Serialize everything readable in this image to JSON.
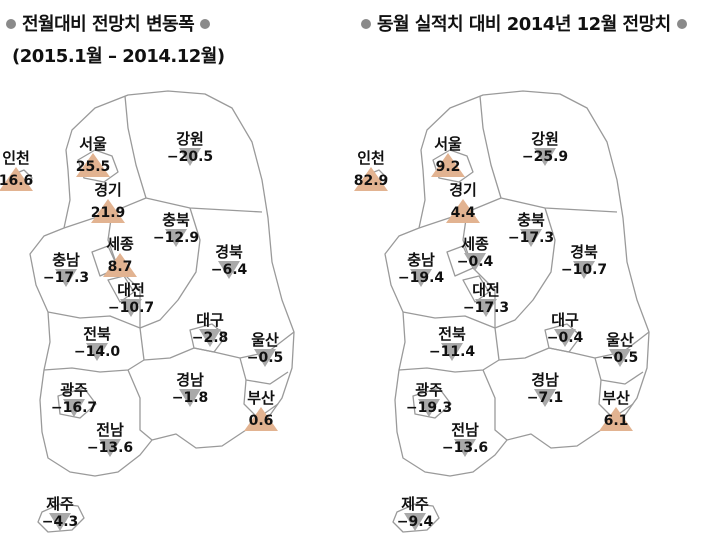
{
  "panels": [
    {
      "title": "전월대비 전망치 변동폭",
      "subtitle": "(2015.1월 – 2014.12월)",
      "regions": [
        {
          "name": "인천",
          "value": "16.6",
          "direction": "up"
        },
        {
          "name": "서울",
          "value": "25.5",
          "direction": "up"
        },
        {
          "name": "강원",
          "value": "−20.5",
          "direction": "down"
        },
        {
          "name": "경기",
          "value": "21.9",
          "direction": "up"
        },
        {
          "name": "충북",
          "value": "−12.9",
          "direction": "down"
        },
        {
          "name": "세종",
          "value": "8.7",
          "direction": "up"
        },
        {
          "name": "충남",
          "value": "−17.3",
          "direction": "down"
        },
        {
          "name": "경북",
          "value": "−6.4",
          "direction": "down"
        },
        {
          "name": "대전",
          "value": "−10.7",
          "direction": "down"
        },
        {
          "name": "대구",
          "value": "−2.8",
          "direction": "down"
        },
        {
          "name": "전북",
          "value": "−14.0",
          "direction": "down"
        },
        {
          "name": "울산",
          "value": "−0.5",
          "direction": "down"
        },
        {
          "name": "경남",
          "value": "−1.8",
          "direction": "down"
        },
        {
          "name": "광주",
          "value": "−16.7",
          "direction": "down"
        },
        {
          "name": "부산",
          "value": "0.6",
          "direction": "up"
        },
        {
          "name": "전남",
          "value": "−13.6",
          "direction": "down"
        },
        {
          "name": "제주",
          "value": "−4.3",
          "direction": "down"
        }
      ]
    },
    {
      "title": "동월 실적치 대비 2014년 12월 전망치",
      "subtitle": "",
      "regions": [
        {
          "name": "인천",
          "value": "82.9",
          "direction": "up"
        },
        {
          "name": "서울",
          "value": "9.2",
          "direction": "up"
        },
        {
          "name": "강원",
          "value": "−25.9",
          "direction": "down"
        },
        {
          "name": "경기",
          "value": "4.4",
          "direction": "up"
        },
        {
          "name": "충북",
          "value": "−17.3",
          "direction": "down"
        },
        {
          "name": "세종",
          "value": "−0.4",
          "direction": "down"
        },
        {
          "name": "충남",
          "value": "−19.4",
          "direction": "down"
        },
        {
          "name": "경북",
          "value": "−10.7",
          "direction": "down"
        },
        {
          "name": "대전",
          "value": "−17.3",
          "direction": "down"
        },
        {
          "name": "대구",
          "value": "−0.4",
          "direction": "down"
        },
        {
          "name": "전북",
          "value": "−11.4",
          "direction": "down"
        },
        {
          "name": "울산",
          "value": "−0.5",
          "direction": "down"
        },
        {
          "name": "경남",
          "value": "−7.1",
          "direction": "down"
        },
        {
          "name": "광주",
          "value": "−19.3",
          "direction": "down"
        },
        {
          "name": "부산",
          "value": "6.1",
          "direction": "up"
        },
        {
          "name": "전남",
          "value": "−13.6",
          "direction": "down"
        },
        {
          "name": "제주",
          "value": "−9.4",
          "direction": "down"
        }
      ]
    }
  ],
  "colors": {
    "increase": "#e2b391",
    "decrease": "#a9a9a9",
    "border": "#9a9a9a"
  }
}
